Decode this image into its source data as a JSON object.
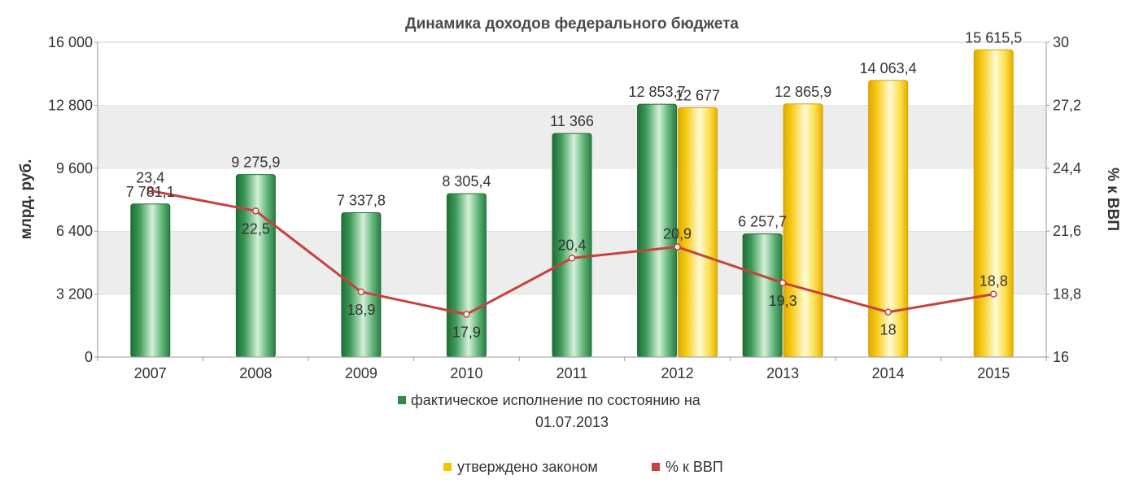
{
  "chart_data": {
    "type": "bar",
    "title": "Динамика доходов федерального бюджета",
    "categories": [
      "2007",
      "2008",
      "2009",
      "2010",
      "2011",
      "2012",
      "2013",
      "2014",
      "2015"
    ],
    "ylabel": "млрд. руб.",
    "y2label": "% к ВВП",
    "ylim": [
      0,
      16000
    ],
    "y2lim": [
      16,
      30
    ],
    "yticks": [
      "0",
      "3 200",
      "6 400",
      "9 600",
      "12 800",
      "16 000"
    ],
    "y2ticks": [
      "16",
      "18,8",
      "21,6",
      "24,4",
      "27,2",
      "30"
    ],
    "grid": "horizontal, alternating bands",
    "legend_position": "bottom",
    "series": [
      {
        "name": "фактическое исполнение по состоянию на 01.07.2013",
        "legend_lines": [
          "фактическое исполнение по состоянию на",
          "01.07.2013"
        ],
        "kind": "bar",
        "color": "#2e8b4a",
        "values": [
          7781.1,
          9275.9,
          7337.8,
          8305.4,
          11366,
          12853.7,
          6257.7,
          null,
          null
        ],
        "labels": [
          "7 781,1",
          "9 275,9",
          "7 337,8",
          "8 305,4",
          "11 366",
          "12 853,7",
          "6 257,7",
          "",
          ""
        ]
      },
      {
        "name": "утверждено законом",
        "kind": "bar",
        "color": "#f5c400",
        "values": [
          null,
          null,
          null,
          null,
          null,
          12677,
          12865.9,
          14063.4,
          15615.5
        ],
        "labels": [
          "",
          "",
          "",
          "",
          "",
          "12 677",
          "12 865,9",
          "14 063,4",
          "15 615,5"
        ]
      },
      {
        "name": "% к ВВП",
        "kind": "line",
        "axis": "right",
        "color": "#c8413c",
        "values": [
          23.4,
          22.5,
          18.9,
          17.9,
          20.4,
          20.9,
          19.3,
          18.0,
          18.8
        ],
        "labels": [
          "23,4",
          "22,5",
          "18,9",
          "17,9",
          "20,4",
          "20,9",
          "19,3",
          "18",
          "18,8"
        ]
      }
    ]
  }
}
